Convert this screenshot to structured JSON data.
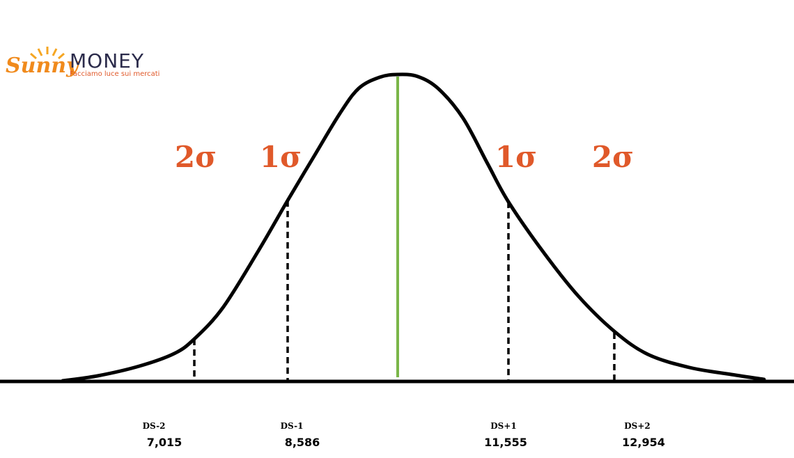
{
  "logo": {
    "brand": "Sunny",
    "name": "MONEY",
    "tagline": "Facciamo luce sui mercati"
  },
  "sigma_labels": [
    "2σ",
    "1σ",
    "1σ",
    "2σ"
  ],
  "markers": [
    {
      "label": "DS-2",
      "value": "7,015"
    },
    {
      "label": "DS-1",
      "value": "8,586"
    },
    {
      "label": "DS+1",
      "value": "11,555"
    },
    {
      "label": "DS+2",
      "value": "12,954"
    }
  ]
}
